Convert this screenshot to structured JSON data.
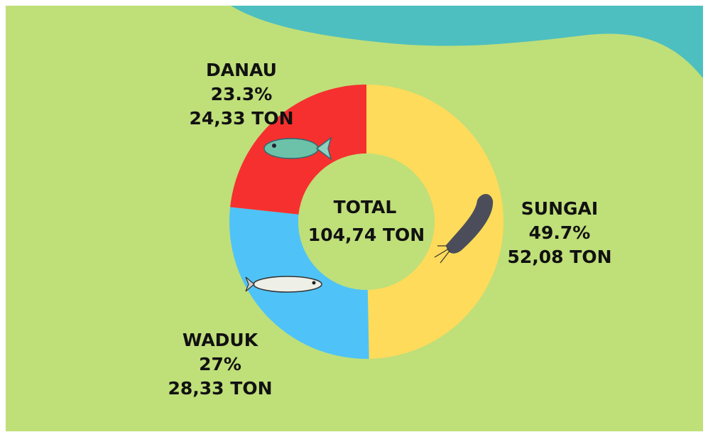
{
  "chart_data": {
    "type": "pie",
    "donut": true,
    "center_title": "TOTAL",
    "center_text": "104,74 TON",
    "categories": [
      "SUNGAI",
      "WADUK",
      "DANAU"
    ],
    "values": [
      49.7,
      27,
      23.3
    ],
    "value_labels": [
      "49.7%",
      "27%",
      "23.3%"
    ],
    "amount_labels": [
      "52,08 TON",
      "28,33 TON",
      "24,33 TON"
    ],
    "colors": [
      "#fedb5a",
      "#4fc3f7",
      "#f6302f"
    ]
  }
}
